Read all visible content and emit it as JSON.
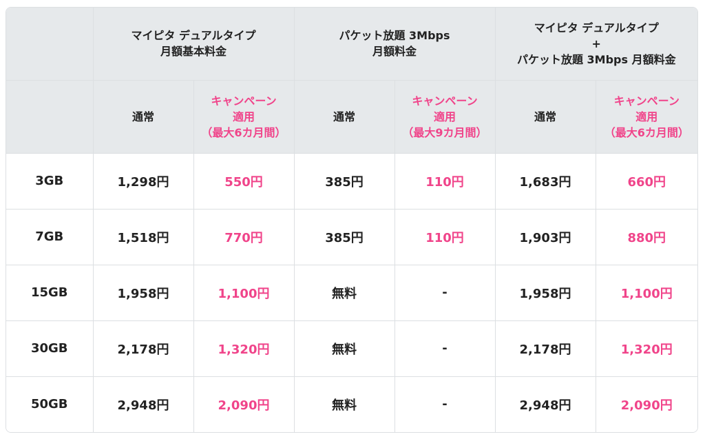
{
  "header": {
    "group1": {
      "line1": "マイピタ デュアルタイプ",
      "line2": "月額基本料金"
    },
    "group2": {
      "line1": "パケット放題 3Mbps",
      "line2": "月額料金"
    },
    "group3": {
      "line1": "マイピタ デュアルタイプ",
      "line2": "+",
      "line3": "パケット放題 3Mbps 月額料金"
    },
    "sub": {
      "regular": "通常",
      "campaign6": {
        "line1": "キャンペーン",
        "line2": "適用",
        "line3": "（最大6カ月間）"
      },
      "campaign9": {
        "line1": "キャンペーン",
        "line2": "適用",
        "line3": "（最大9カ月間）"
      }
    }
  },
  "rows": [
    {
      "plan": "3GB",
      "base_regular": "1,298円",
      "base_campaign": "550円",
      "packet_regular": "385円",
      "packet_campaign": "110円",
      "total_regular": "1,683円",
      "total_campaign": "660円"
    },
    {
      "plan": "7GB",
      "base_regular": "1,518円",
      "base_campaign": "770円",
      "packet_regular": "385円",
      "packet_campaign": "110円",
      "total_regular": "1,903円",
      "total_campaign": "880円"
    },
    {
      "plan": "15GB",
      "base_regular": "1,958円",
      "base_campaign": "1,100円",
      "packet_regular": "無料",
      "packet_campaign": "-",
      "total_regular": "1,958円",
      "total_campaign": "1,100円"
    },
    {
      "plan": "30GB",
      "base_regular": "2,178円",
      "base_campaign": "1,320円",
      "packet_regular": "無料",
      "packet_campaign": "-",
      "total_regular": "2,178円",
      "total_campaign": "1,320円"
    },
    {
      "plan": "50GB",
      "base_regular": "2,948円",
      "base_campaign": "2,090円",
      "packet_regular": "無料",
      "packet_campaign": "-",
      "total_regular": "2,948円",
      "total_campaign": "2,090円"
    }
  ],
  "colors": {
    "accent": "#f0448a",
    "header_bg": "#e6e9eb",
    "border": "#dcdfe2"
  }
}
